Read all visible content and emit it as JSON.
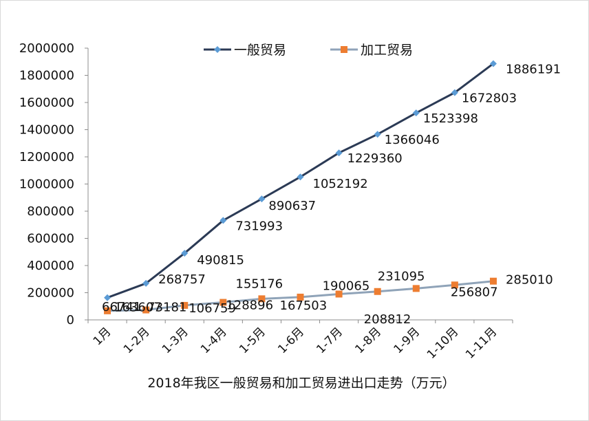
{
  "chart_data": {
    "type": "line",
    "title": "2018年我区一般贸易和加工贸易进出口走势（万元）",
    "xlabel": "",
    "ylabel": "",
    "categories": [
      "1月",
      "1-2月",
      "1-3月",
      "1-4月",
      "1-5月",
      "1-6月",
      "1-7月",
      "1-8月",
      "1-9月",
      "1-10月",
      "1-11月"
    ],
    "ylim": [
      0,
      2000000
    ],
    "yticks": [
      "0",
      "200000",
      "400000",
      "600000",
      "800000",
      "1000000",
      "1200000",
      "1400000",
      "1600000",
      "1800000",
      "2000000"
    ],
    "legend_position": "top",
    "grid": false,
    "series": [
      {
        "name": "一般贸易",
        "color": "#2b3a55",
        "marker_color": "#5b9bd5",
        "marker": "diamond",
        "values": [
          163607,
          268757,
          490815,
          731993,
          890637,
          1052192,
          1229360,
          1366046,
          1523398,
          1672803,
          1886191
        ],
        "labels": [
          "163607",
          "268757",
          "490815",
          "731993",
          "890637",
          "1052192",
          "1229360",
          "1366046",
          "1523398",
          "1672803",
          "1886191"
        ]
      },
      {
        "name": "加工贸易",
        "color": "#8fa3b8",
        "marker_color": "#ed7d31",
        "marker": "square",
        "values": [
          66741,
          73181,
          106759,
          128896,
          155176,
          167503,
          190065,
          208812,
          231095,
          256807,
          285010
        ],
        "labels": [
          "66741",
          "73181",
          "106759",
          "128896",
          "155176",
          "167503",
          "190065",
          "208812",
          "231095",
          "256807",
          "285010"
        ]
      }
    ]
  }
}
